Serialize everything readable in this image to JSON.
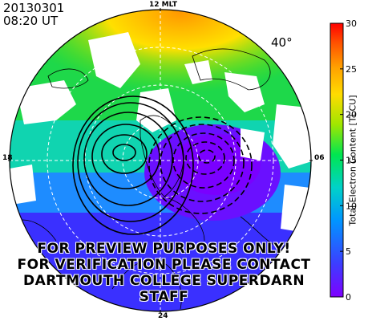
{
  "header": {
    "date": "20130301",
    "time": "08:20 UT",
    "latitude_label": "40°"
  },
  "mlt_labels": {
    "top": "12 MLT",
    "left": "18",
    "right": "06",
    "bottom": "24"
  },
  "watermark": {
    "lines": [
      "FOR PREVIEW PURPOSES ONLY!",
      "FOR VERIFICATION PLEASE CONTACT",
      "DARTMOUTH COLLEGE SUPERDARN STAFF"
    ]
  },
  "colorbar": {
    "title": "Total Electron Content [TECU]",
    "min": 0,
    "max": 30,
    "ticks": [
      "0",
      "5",
      "10",
      "15",
      "20",
      "25",
      "30"
    ],
    "colors": [
      "#7f00ff",
      "#3d3dff",
      "#0096ff",
      "#00d2c8",
      "#00e650",
      "#a0e600",
      "#ffdc00",
      "#ffa000",
      "#ff5000",
      "#ff0000"
    ]
  },
  "map_colors": {
    "dayside": "#ffa500",
    "mid": "#00e64a",
    "cyan": "#00d8c8",
    "blue": "#2868ff",
    "nightside": "#6a14ff"
  }
}
